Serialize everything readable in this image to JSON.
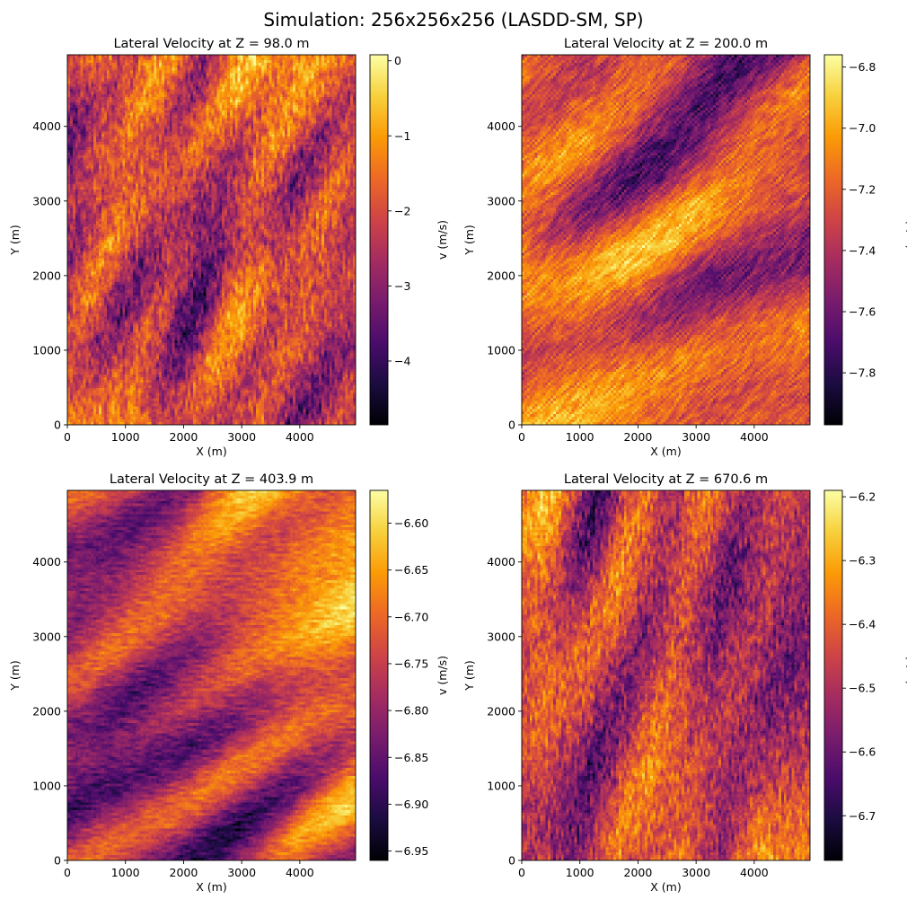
{
  "figure": {
    "suptitle": "Simulation: 256x256x256 (LASDD-SM, SP)"
  },
  "colormap": {
    "name": "inferno",
    "stops": [
      "#000004",
      "#1b0c41",
      "#4a0c6b",
      "#781c6d",
      "#a52c60",
      "#cf4446",
      "#ed6925",
      "#fb9b06",
      "#f7d13d",
      "#fcffa4"
    ]
  },
  "chart_data": [
    {
      "type": "heatmap",
      "title": "Lateral Velocity at Z = 98.0 m",
      "xlabel": "X (m)",
      "ylabel": "Y (m)",
      "xlim": [
        0,
        4960
      ],
      "ylim": [
        0,
        4960
      ],
      "xticks": [
        0,
        1000,
        2000,
        3000,
        4000
      ],
      "yticks": [
        0,
        1000,
        2000,
        3000,
        4000
      ],
      "colorbar": {
        "label": "v (m/s)",
        "range": [
          -4.85,
          0.08
        ],
        "ticks": [
          0,
          -1,
          -2,
          -3,
          -4
        ],
        "tick_labels": [
          "0",
          "−1",
          "−2",
          "−3",
          "−4"
        ]
      },
      "pattern": "diagonal streaks, fine-grained turbulence",
      "seed": 11
    },
    {
      "type": "heatmap",
      "title": "Lateral Velocity at Z = 200.0 m",
      "xlabel": "X (m)",
      "ylabel": "Y (m)",
      "xlim": [
        0,
        4960
      ],
      "ylim": [
        0,
        4960
      ],
      "xticks": [
        0,
        1000,
        2000,
        3000,
        4000
      ],
      "yticks": [
        0,
        1000,
        2000,
        3000,
        4000
      ],
      "colorbar": {
        "label": "v (m/s)",
        "range": [
          -7.97,
          -6.76
        ],
        "ticks": [
          -6.8,
          -7.0,
          -7.2,
          -7.4,
          -7.6,
          -7.8
        ],
        "tick_labels": [
          "−6.8",
          "−7.0",
          "−7.2",
          "−7.4",
          "−7.6",
          "−7.8"
        ]
      },
      "pattern": "patchy diagonal structures",
      "seed": 23
    },
    {
      "type": "heatmap",
      "title": "Lateral Velocity at Z = 403.9 m",
      "xlabel": "X (m)",
      "ylabel": "Y (m)",
      "xlim": [
        0,
        4960
      ],
      "ylim": [
        0,
        4960
      ],
      "xticks": [
        0,
        1000,
        2000,
        3000,
        4000
      ],
      "yticks": [
        0,
        1000,
        2000,
        3000,
        4000
      ],
      "colorbar": {
        "label": "v (m/s)",
        "range": [
          -6.96,
          -6.565
        ],
        "ticks": [
          -6.6,
          -6.65,
          -6.7,
          -6.75,
          -6.8,
          -6.85,
          -6.9,
          -6.95
        ],
        "tick_labels": [
          "−6.60",
          "−6.65",
          "−6.70",
          "−6.75",
          "−6.80",
          "−6.85",
          "−6.90",
          "−6.95"
        ]
      },
      "pattern": "broad diagonal bands",
      "seed": 37
    },
    {
      "type": "heatmap",
      "title": "Lateral Velocity at Z = 670.6 m",
      "xlabel": "X (m)",
      "ylabel": "Y (m)",
      "xlim": [
        0,
        4960
      ],
      "ylim": [
        0,
        4960
      ],
      "xticks": [
        0,
        1000,
        2000,
        3000,
        4000
      ],
      "yticks": [
        0,
        1000,
        2000,
        3000,
        4000
      ],
      "colorbar": {
        "label": "v (m/s)",
        "range": [
          -6.77,
          -6.19
        ],
        "ticks": [
          -6.2,
          -6.3,
          -6.4,
          -6.5,
          -6.6,
          -6.7
        ],
        "tick_labels": [
          "−6.2",
          "−6.3",
          "−6.4",
          "−6.5",
          "−6.6",
          "−6.7"
        ]
      },
      "pattern": "fine steep diagonal streaks",
      "seed": 53
    }
  ]
}
